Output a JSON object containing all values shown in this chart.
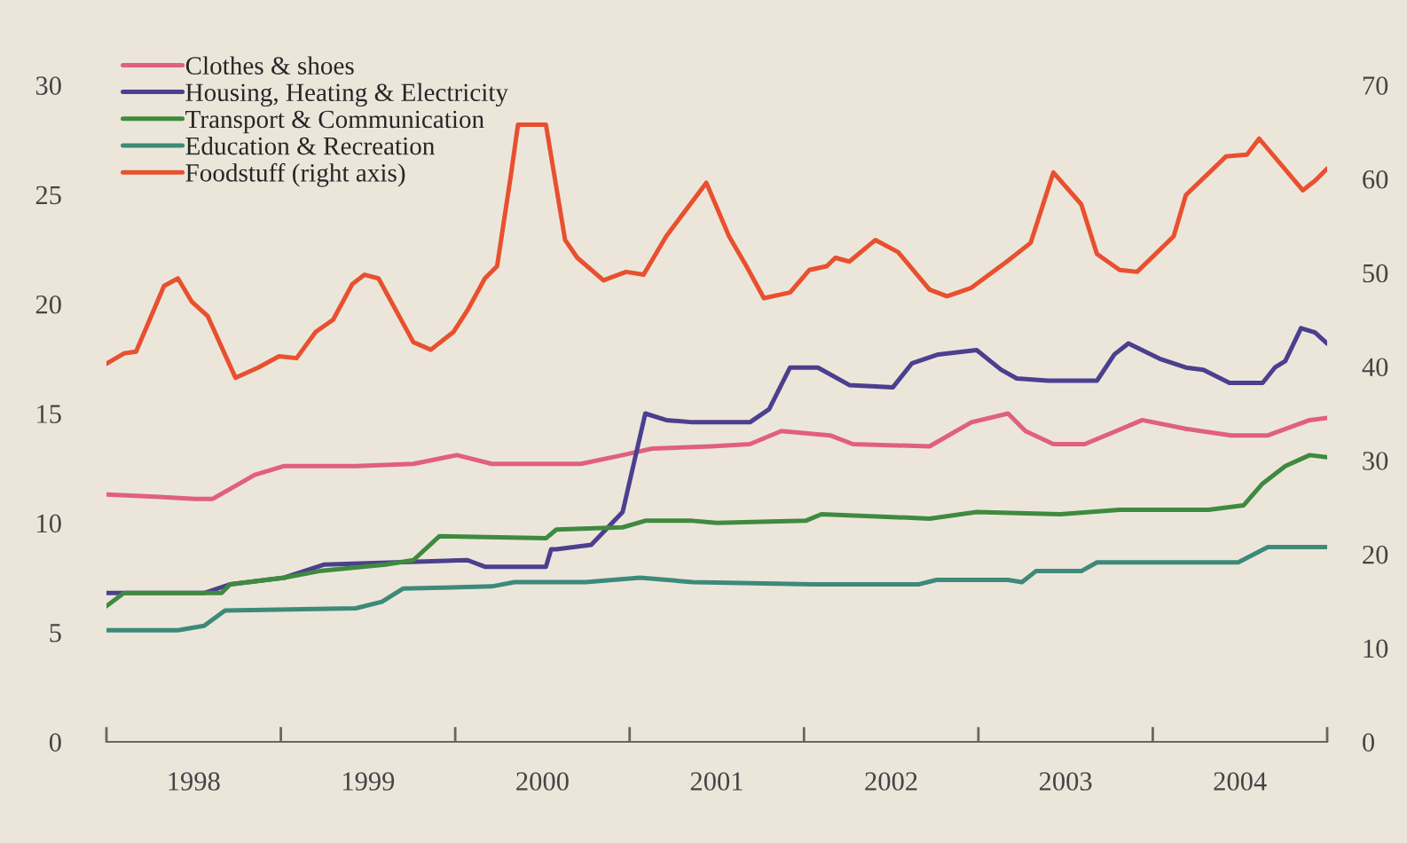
{
  "chart_data": {
    "type": "line",
    "xlim": [
      1998,
      2005
    ],
    "xticks": [
      {
        "value": 1998,
        "label": null
      },
      {
        "value": 1998.5,
        "label": "1998"
      },
      {
        "value": 1999,
        "label": null
      },
      {
        "value": 1999.5,
        "label": "1999"
      },
      {
        "value": 2000,
        "label": null
      },
      {
        "value": 2000.5,
        "label": "2000"
      },
      {
        "value": 2001,
        "label": null
      },
      {
        "value": 2001.5,
        "label": "2001"
      },
      {
        "value": 2002,
        "label": null
      },
      {
        "value": 2002.5,
        "label": "2002"
      },
      {
        "value": 2003,
        "label": null
      },
      {
        "value": 2003.5,
        "label": "2003"
      },
      {
        "value": 2004,
        "label": null
      },
      {
        "value": 2004.5,
        "label": "2004"
      },
      {
        "value": 2005,
        "label": null
      }
    ],
    "ylim": [
      0,
      30
    ],
    "yticks": [
      0,
      5,
      10,
      15,
      20,
      25,
      30
    ],
    "y2lim": [
      0,
      70
    ],
    "y2ticks": [
      0,
      10,
      20,
      30,
      40,
      50,
      60,
      70
    ],
    "legend": "top left",
    "grid": false,
    "series": [
      {
        "name": "Clothes & shoes",
        "color": "#e0607e",
        "x": [
          1998.0,
          1998.28,
          1998.51,
          1998.61,
          1998.85,
          1999.02,
          1999.43,
          1999.76,
          2000.01,
          2000.21,
          2000.72,
          2000.96,
          2001.13,
          2001.47,
          2001.69,
          2001.87,
          2002.15,
          2002.28,
          2002.72,
          2002.96,
          2003.17,
          2003.27,
          2003.43,
          2003.61,
          2003.94,
          2004.19,
          2004.45,
          2004.66,
          2004.9,
          2005.0
        ],
        "values": [
          11.3,
          11.2,
          11.1,
          11.1,
          12.2,
          12.6,
          12.6,
          12.7,
          13.1,
          12.7,
          12.7,
          13.1,
          13.4,
          13.5,
          13.6,
          14.2,
          14.0,
          13.6,
          13.5,
          14.6,
          15.0,
          14.2,
          13.6,
          13.6,
          14.7,
          14.3,
          14.0,
          14.0,
          14.7,
          14.8
        ]
      },
      {
        "name": "Housing, Heating & Electricity",
        "color": "#4b3f8f",
        "x": [
          1998.0,
          1998.56,
          1998.71,
          1999.02,
          1999.25,
          2000.07,
          2000.17,
          2000.52,
          2000.55,
          2000.58,
          2000.78,
          2000.96,
          2001.09,
          2001.21,
          2001.36,
          2001.69,
          2001.8,
          2001.92,
          2002.08,
          2002.26,
          2002.51,
          2002.62,
          2002.77,
          2002.99,
          2003.13,
          2003.22,
          2003.4,
          2003.68,
          2003.78,
          2003.86,
          2004.04,
          2004.19,
          2004.29,
          2004.44,
          2004.63,
          2004.7,
          2004.76,
          2004.85,
          2004.93,
          2005.0
        ],
        "values": [
          6.8,
          6.8,
          7.2,
          7.5,
          8.1,
          8.3,
          8.0,
          8.0,
          8.8,
          8.8,
          9.0,
          10.5,
          15.0,
          14.7,
          14.6,
          14.6,
          15.2,
          17.1,
          17.1,
          16.3,
          16.2,
          17.3,
          17.7,
          17.9,
          17.0,
          16.6,
          16.5,
          16.5,
          17.7,
          18.2,
          17.5,
          17.1,
          17.0,
          16.4,
          16.4,
          17.1,
          17.4,
          18.9,
          18.7,
          18.2
        ]
      },
      {
        "name": "Transport & Communication",
        "color": "#3f8a3f",
        "x": [
          1998.0,
          1998.1,
          1998.66,
          1998.71,
          1999.02,
          1999.22,
          1999.6,
          1999.76,
          1999.91,
          2000.52,
          2000.58,
          2000.96,
          2001.09,
          2001.36,
          2001.5,
          2002.01,
          2002.1,
          2002.72,
          2002.99,
          2003.47,
          2003.81,
          2004.32,
          2004.52,
          2004.63,
          2004.76,
          2004.9,
          2005.0
        ],
        "values": [
          6.2,
          6.8,
          6.8,
          7.2,
          7.5,
          7.8,
          8.1,
          8.3,
          9.4,
          9.3,
          9.7,
          9.8,
          10.1,
          10.1,
          10.0,
          10.1,
          10.4,
          10.2,
          10.5,
          10.4,
          10.6,
          10.6,
          10.8,
          11.8,
          12.6,
          13.1,
          13.0
        ]
      },
      {
        "name": "Education & Recreation",
        "color": "#3d8a78",
        "x": [
          1998.0,
          1998.41,
          1998.56,
          1998.68,
          1999.43,
          1999.58,
          1999.7,
          2000.21,
          2000.34,
          2000.75,
          2001.06,
          2001.36,
          2002.05,
          2002.66,
          2002.76,
          2003.17,
          2003.25,
          2003.33,
          2003.59,
          2003.68,
          2004.49,
          2004.66,
          2005.0
        ],
        "values": [
          5.1,
          5.1,
          5.3,
          6.0,
          6.1,
          6.4,
          7.0,
          7.1,
          7.3,
          7.3,
          7.5,
          7.3,
          7.2,
          7.2,
          7.4,
          7.4,
          7.3,
          7.8,
          7.8,
          8.2,
          8.2,
          8.9,
          8.9
        ]
      },
      {
        "name": "Foodstuff (right axis)",
        "color": "#e8502f",
        "axis": "y2",
        "x": [
          1998.0,
          1998.1,
          1998.17,
          1998.33,
          1998.41,
          1998.49,
          1998.58,
          1998.74,
          1998.87,
          1998.99,
          1999.09,
          1999.2,
          1999.3,
          1999.41,
          1999.48,
          1999.56,
          1999.76,
          1999.86,
          1999.99,
          2000.07,
          2000.17,
          2000.24,
          2000.32,
          2000.36,
          2000.52,
          2000.63,
          2000.7,
          2000.85,
          2000.98,
          2001.08,
          2001.21,
          2001.44,
          2001.57,
          2001.67,
          2001.77,
          2001.92,
          2002.03,
          2002.13,
          2002.18,
          2002.26,
          2002.41,
          2002.54,
          2002.72,
          2002.82,
          2002.96,
          2003.17,
          2003.3,
          2003.43,
          2003.59,
          2003.68,
          2003.81,
          2003.91,
          2004.12,
          2004.19,
          2004.42,
          2004.54,
          2004.61,
          2004.86,
          2004.93,
          2005.0
        ],
        "values": [
          40.3,
          41.4,
          41.6,
          48.6,
          49.4,
          46.9,
          45.4,
          38.8,
          39.9,
          41.1,
          40.9,
          43.7,
          45.0,
          48.8,
          49.8,
          49.4,
          42.6,
          41.8,
          43.7,
          46.0,
          49.4,
          50.7,
          60.5,
          65.8,
          65.8,
          53.5,
          51.6,
          49.2,
          50.1,
          49.8,
          53.9,
          59.6,
          53.9,
          50.7,
          47.3,
          47.9,
          50.3,
          50.7,
          51.6,
          51.2,
          53.5,
          52.2,
          48.2,
          47.5,
          48.4,
          51.3,
          53.2,
          60.7,
          57.3,
          52.0,
          50.3,
          50.1,
          53.9,
          58.3,
          62.4,
          62.6,
          64.3,
          58.8,
          59.8,
          61.1
        ]
      }
    ]
  }
}
